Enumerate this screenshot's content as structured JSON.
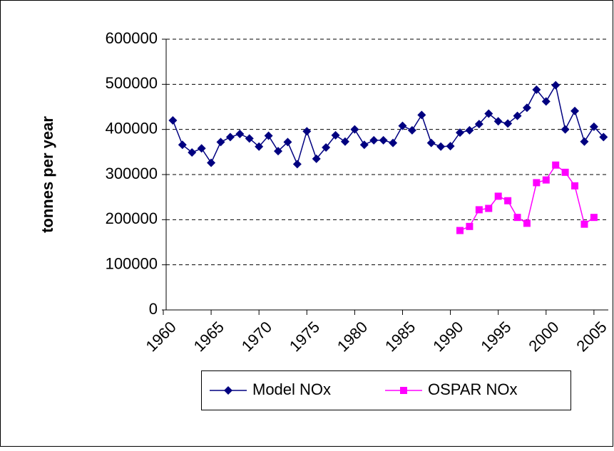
{
  "chart_data": {
    "type": "line",
    "y_label": "tonnes per year",
    "x": [
      1961,
      1962,
      1963,
      1964,
      1965,
      1966,
      1967,
      1968,
      1969,
      1970,
      1971,
      1972,
      1973,
      1974,
      1975,
      1976,
      1977,
      1978,
      1979,
      1980,
      1981,
      1982,
      1983,
      1984,
      1985,
      1986,
      1987,
      1988,
      1989,
      1990,
      1991,
      1992,
      1993,
      1994,
      1995,
      1996,
      1997,
      1998,
      1999,
      2000,
      2001,
      2002,
      2003,
      2004,
      2005,
      2006
    ],
    "series": [
      {
        "name": "Model NOx",
        "color": "#000080",
        "marker": "diamond",
        "x": [
          1961,
          1962,
          1963,
          1964,
          1965,
          1966,
          1967,
          1968,
          1969,
          1970,
          1971,
          1972,
          1973,
          1974,
          1975,
          1976,
          1977,
          1978,
          1979,
          1980,
          1981,
          1982,
          1983,
          1984,
          1985,
          1986,
          1987,
          1988,
          1989,
          1990,
          1991,
          1992,
          1993,
          1994,
          1995,
          1996,
          1997,
          1998,
          1999,
          2000,
          2001,
          2002,
          2003,
          2004,
          2005,
          2006
        ],
        "values": [
          420000,
          366000,
          349000,
          358000,
          326000,
          372000,
          383000,
          390000,
          380000,
          362000,
          386000,
          352000,
          372000,
          323000,
          396000,
          335000,
          360000,
          387000,
          373000,
          400000,
          366000,
          376000,
          376000,
          370000,
          408000,
          398000,
          432000,
          370000,
          362000,
          363000,
          393000,
          398000,
          412000,
          435000,
          418000,
          413000,
          430000,
          448000,
          488000,
          462000,
          498000,
          400000,
          441000,
          373000,
          406000,
          383000
        ]
      },
      {
        "name": "OSPAR NOx",
        "color": "#ff00ff",
        "marker": "square",
        "x": [
          1991,
          1992,
          1993,
          1994,
          1995,
          1996,
          1997,
          1998,
          1999,
          2000,
          2001,
          2002,
          2003,
          2004,
          2005
        ],
        "values": [
          176000,
          185000,
          222000,
          225000,
          252000,
          242000,
          205000,
          192000,
          282000,
          288000,
          321000,
          305000,
          275000,
          190000,
          205000
        ]
      }
    ],
    "xlim": [
      1960.3,
      2006.5
    ],
    "xticks": [
      1960,
      1965,
      1970,
      1975,
      1980,
      1985,
      1990,
      1995,
      2000,
      2005
    ],
    "ylim": [
      0,
      600000
    ],
    "yticks": [
      0,
      100000,
      200000,
      300000,
      400000,
      500000,
      600000
    ],
    "grid": true,
    "legend": "bottom"
  }
}
